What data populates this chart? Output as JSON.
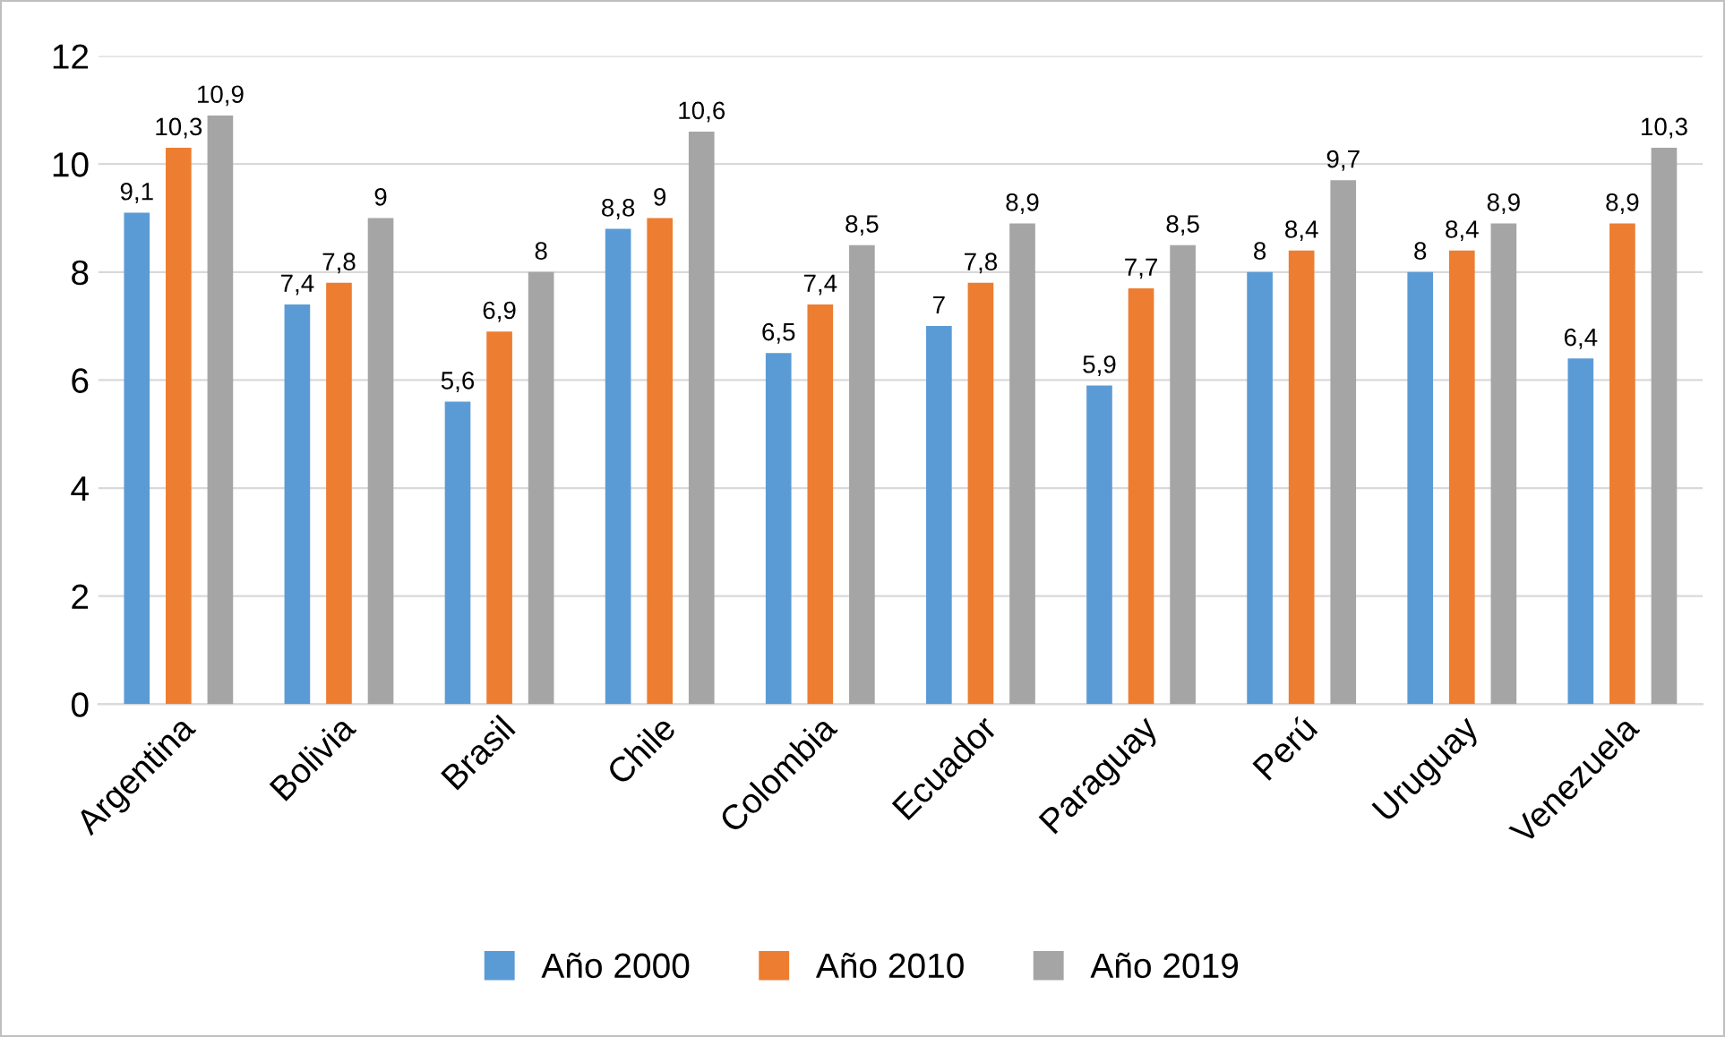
{
  "chart_data": {
    "type": "bar",
    "categories": [
      "Argentina",
      "Bolivia",
      "Brasil",
      "Chile",
      "Colombia",
      "Ecuador",
      "Paraguay",
      "Perú",
      "Uruguay",
      "Venezuela"
    ],
    "series": [
      {
        "name": "Año 2000",
        "color": "#5b9bd5",
        "values": [
          9.1,
          7.4,
          5.6,
          8.8,
          6.5,
          7,
          5.9,
          8,
          8,
          6.4
        ],
        "value_labels": [
          "9,1",
          "7,4",
          "5,6",
          "8,8",
          "6,5",
          "7",
          "5,9",
          "8",
          "8",
          "6,4"
        ]
      },
      {
        "name": "Año 2010",
        "color": "#ed7d31",
        "values": [
          10.3,
          7.8,
          6.9,
          9,
          7.4,
          7.8,
          7.7,
          8.4,
          8.4,
          8.9
        ],
        "value_labels": [
          "10,3",
          "7,8",
          "6,9",
          "9",
          "7,4",
          "7,8",
          "7,7",
          "8,4",
          "8,4",
          "8,9"
        ]
      },
      {
        "name": "Año 2019",
        "color": "#a5a5a5",
        "values": [
          10.9,
          9,
          8,
          10.6,
          8.5,
          8.9,
          8.5,
          9.7,
          8.9,
          10.3
        ],
        "value_labels": [
          "10,9",
          "9",
          "8",
          "10,6",
          "8,5",
          "8,9",
          "8,5",
          "9,7",
          "8,9",
          "10,3"
        ]
      }
    ],
    "ylim": [
      0,
      12
    ],
    "yticks": [
      0,
      2,
      4,
      6,
      8,
      10,
      12
    ],
    "grid": "y",
    "legend": "bottom"
  }
}
